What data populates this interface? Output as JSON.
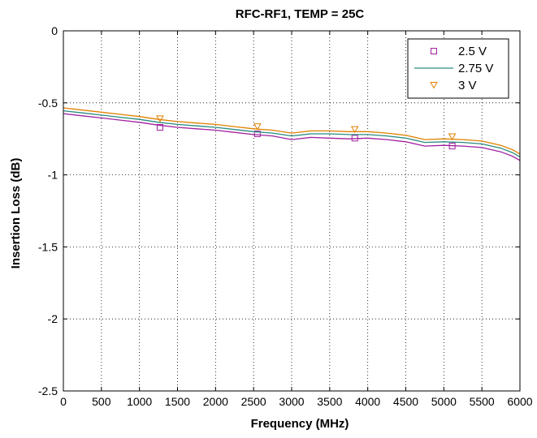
{
  "chart_data": {
    "type": "line",
    "title": "RFC-RF1, TEMP = 25C",
    "xlabel": "Frequency (MHz)",
    "ylabel": "Insertion Loss (dB)",
    "xlim": [
      0,
      6000
    ],
    "ylim": [
      -2.5,
      0
    ],
    "xticks": [
      0,
      500,
      1000,
      1500,
      2000,
      2500,
      3000,
      3500,
      4000,
      4500,
      5000,
      5500,
      6000
    ],
    "yticks": [
      0,
      -0.5,
      -1,
      -1.5,
      -2,
      -2.5
    ],
    "xtick_labels": [
      "0",
      "500",
      "1000",
      "1500",
      "2000",
      "2500",
      "3000",
      "3500",
      "4000",
      "4500",
      "5000",
      "5500",
      "6000"
    ],
    "ytick_labels": [
      "0",
      "-0.5",
      "-1",
      "-1.5",
      "-2",
      "-2.5"
    ],
    "grid": true,
    "legend_position": "top-right",
    "x": [
      0,
      250,
      500,
      750,
      1000,
      1250,
      1500,
      1750,
      2000,
      2250,
      2500,
      2750,
      3000,
      3250,
      3500,
      3750,
      4000,
      4250,
      4500,
      4750,
      5000,
      5250,
      5500,
      5750,
      5900,
      6000
    ],
    "series": [
      {
        "name": "2.5 V",
        "color": "#a020a0",
        "marker": "square",
        "values": [
          -0.575,
          -0.59,
          -0.605,
          -0.62,
          -0.635,
          -0.655,
          -0.67,
          -0.68,
          -0.69,
          -0.705,
          -0.72,
          -0.73,
          -0.755,
          -0.74,
          -0.745,
          -0.75,
          -0.745,
          -0.755,
          -0.77,
          -0.8,
          -0.795,
          -0.8,
          -0.81,
          -0.84,
          -0.87,
          -0.9
        ],
        "marker_x": [
          1270,
          2550,
          3830,
          5110
        ],
        "marker_values": [
          -0.67,
          -0.715,
          -0.745,
          -0.8
        ]
      },
      {
        "name": "2.75 V",
        "color": "#2a8a80",
        "marker": "none",
        "values": [
          -0.555,
          -0.57,
          -0.585,
          -0.6,
          -0.615,
          -0.635,
          -0.65,
          -0.66,
          -0.67,
          -0.685,
          -0.7,
          -0.71,
          -0.73,
          -0.715,
          -0.715,
          -0.72,
          -0.72,
          -0.73,
          -0.745,
          -0.775,
          -0.77,
          -0.775,
          -0.785,
          -0.815,
          -0.845,
          -0.875
        ]
      },
      {
        "name": "3 V",
        "color": "#e08000",
        "marker": "triangle-down",
        "values": [
          -0.535,
          -0.55,
          -0.565,
          -0.58,
          -0.595,
          -0.615,
          -0.63,
          -0.64,
          -0.65,
          -0.665,
          -0.68,
          -0.69,
          -0.71,
          -0.695,
          -0.695,
          -0.7,
          -0.7,
          -0.71,
          -0.725,
          -0.755,
          -0.75,
          -0.755,
          -0.765,
          -0.795,
          -0.825,
          -0.855
        ],
        "marker_x": [
          1270,
          2550,
          3830,
          5110
        ],
        "marker_values": [
          -0.61,
          -0.665,
          -0.685,
          -0.735
        ]
      }
    ]
  }
}
